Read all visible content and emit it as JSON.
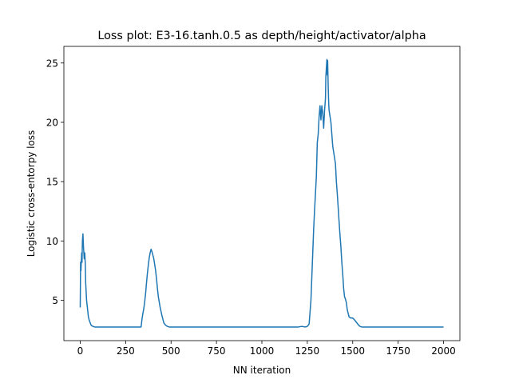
{
  "chart_data": {
    "type": "line",
    "title": "Loss plot: E3-16.tanh.0.5 as depth/height/activator/alpha",
    "xlabel": "NN iteration",
    "ylabel": "Logistic cross-entorpy loss",
    "xlim": [
      -90,
      2090
    ],
    "ylim": [
      1.6,
      26.4
    ],
    "xticks": [
      0,
      250,
      500,
      750,
      1000,
      1250,
      1500,
      1750,
      2000
    ],
    "yticks": [
      5,
      10,
      15,
      20,
      25
    ],
    "grid": false,
    "series": [
      {
        "color": "#1f77b4",
        "x": [
          0,
          2,
          4,
          6,
          8,
          10,
          12,
          15,
          18,
          20,
          22,
          25,
          28,
          30,
          35,
          40,
          45,
          50,
          55,
          60,
          70,
          80,
          100,
          150,
          200,
          250,
          300,
          320,
          335,
          340,
          345,
          350,
          355,
          360,
          365,
          370,
          375,
          380,
          385,
          390,
          395,
          400,
          405,
          410,
          415,
          420,
          425,
          430,
          440,
          450,
          460,
          470,
          480,
          490,
          500,
          520,
          550,
          600,
          700,
          800,
          900,
          1000,
          1100,
          1200,
          1220,
          1240,
          1250,
          1260,
          1270,
          1280,
          1285,
          1290,
          1295,
          1300,
          1305,
          1310,
          1315,
          1320,
          1325,
          1330,
          1335,
          1340,
          1345,
          1350,
          1352,
          1355,
          1358,
          1360,
          1362,
          1365,
          1368,
          1370,
          1375,
          1380,
          1385,
          1390,
          1395,
          1400,
          1405,
          1410,
          1415,
          1420,
          1425,
          1430,
          1435,
          1440,
          1445,
          1450,
          1455,
          1460,
          1465,
          1470,
          1480,
          1490,
          1500,
          1510,
          1520,
          1530,
          1540,
          1550,
          1600,
          1700,
          1800,
          1900,
          2000
        ],
        "y": [
          4.4,
          8.2,
          7.5,
          8.3,
          9.0,
          8.2,
          10.0,
          10.6,
          9.5,
          9.0,
          8.5,
          9.0,
          8.0,
          6.5,
          5.0,
          4.3,
          3.6,
          3.3,
          3.1,
          2.9,
          2.8,
          2.75,
          2.75,
          2.75,
          2.75,
          2.75,
          2.75,
          2.75,
          2.75,
          3.4,
          3.9,
          4.3,
          4.9,
          5.6,
          6.5,
          7.3,
          8.0,
          8.6,
          9.0,
          9.3,
          9.1,
          8.8,
          8.5,
          8.0,
          7.5,
          6.8,
          6.0,
          5.3,
          4.4,
          3.7,
          3.1,
          2.9,
          2.8,
          2.75,
          2.75,
          2.75,
          2.75,
          2.75,
          2.75,
          2.75,
          2.75,
          2.75,
          2.75,
          2.75,
          2.8,
          2.75,
          2.8,
          3.0,
          5.0,
          9.0,
          11.0,
          12.6,
          14.0,
          15.5,
          18.3,
          19.0,
          20.5,
          21.4,
          20.2,
          21.4,
          20.8,
          19.5,
          21.0,
          22.0,
          23.8,
          24.6,
          25.3,
          24.0,
          25.2,
          23.0,
          21.5,
          21.0,
          20.5,
          20.0,
          19.0,
          18.0,
          17.5,
          17.0,
          16.5,
          15.0,
          14.0,
          12.8,
          11.6,
          10.5,
          9.5,
          8.2,
          7.2,
          6.0,
          5.3,
          5.1,
          4.8,
          4.2,
          3.6,
          3.5,
          3.5,
          3.35,
          3.15,
          2.95,
          2.8,
          2.75,
          2.75,
          2.75,
          2.75,
          2.75,
          2.75
        ]
      }
    ]
  }
}
